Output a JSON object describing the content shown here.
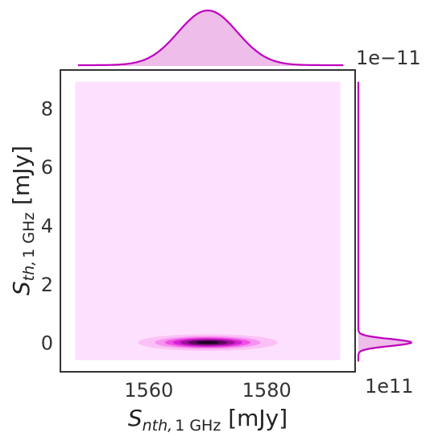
{
  "chart_data": {
    "type": "jointplot-kde",
    "xlabel": "S_nth,1GHz [mJy]",
    "ylabel": "S_th,1GHz [mJy]",
    "xlabel_parts": {
      "main": "S",
      "sub": "nth,",
      "sub2": "1 GHz",
      "unit": " [mJy]"
    },
    "ylabel_parts": {
      "main": "S",
      "sub": "th,",
      "sub2": "1 GHz",
      "unit": " [mJy]"
    },
    "xlim": [
      1545,
      1595
    ],
    "ylim": [
      -1.0,
      9.3
    ],
    "x_ticks": [
      1560,
      1580
    ],
    "x_tick_labels": [
      "1560",
      "1580"
    ],
    "y_ticks": [
      0,
      2,
      4,
      6,
      8
    ],
    "y_tick_labels": [
      "0",
      "2",
      "4",
      "6",
      "8"
    ],
    "y_offset_text": "1e−11",
    "right_marginal_offset_text": "1e11",
    "joint_kde": {
      "center": [
        1570,
        0.0
      ],
      "sigma": [
        5.0,
        0.12
      ],
      "background_extent": {
        "x": [
          1547.5,
          1592.5
        ],
        "y": [
          -0.6,
          8.9
        ]
      },
      "levels": [
        0.06,
        0.2,
        0.35,
        0.5,
        0.65,
        0.8,
        0.93
      ],
      "level_colors": [
        "#fbc1f6",
        "#f692ef",
        "#f04fe6",
        "#d320d0",
        "#9b0f9a",
        "#5a075d",
        "#1c0421"
      ]
    },
    "top_marginal": {
      "type": "kde",
      "x_center": 1570,
      "x_sigma": 5.0,
      "range": [
        1548,
        1593
      ]
    },
    "right_marginal": {
      "type": "kde",
      "y_center": 0.0,
      "y_sigma": 0.12,
      "range": [
        -0.65,
        8.9
      ]
    },
    "colors": {
      "line": "#bf00bf",
      "marginal_fill": "#eebde9",
      "background": "#fde0fd",
      "frame": "#333333"
    },
    "grid": false
  }
}
